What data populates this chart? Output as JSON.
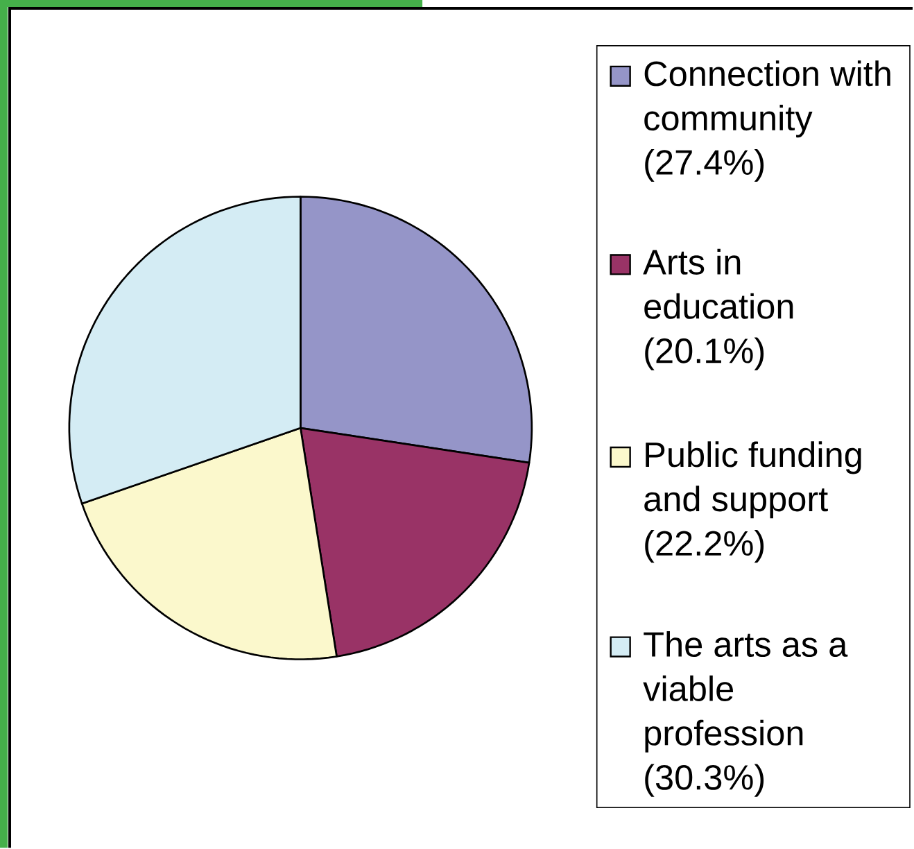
{
  "chart_data": {
    "type": "pie",
    "categories": [
      "Connection with community (27.4%)",
      "Arts in education (20.1%)",
      "Public funding and support (22.2%)",
      "The arts as a viable profession (30.3%)"
    ],
    "values": [
      27.4,
      20.1,
      22.2,
      30.3
    ],
    "colors": [
      "#9595c8",
      "#993366",
      "#fbf8cc",
      "#d4ecf4"
    ],
    "legend": "right"
  }
}
